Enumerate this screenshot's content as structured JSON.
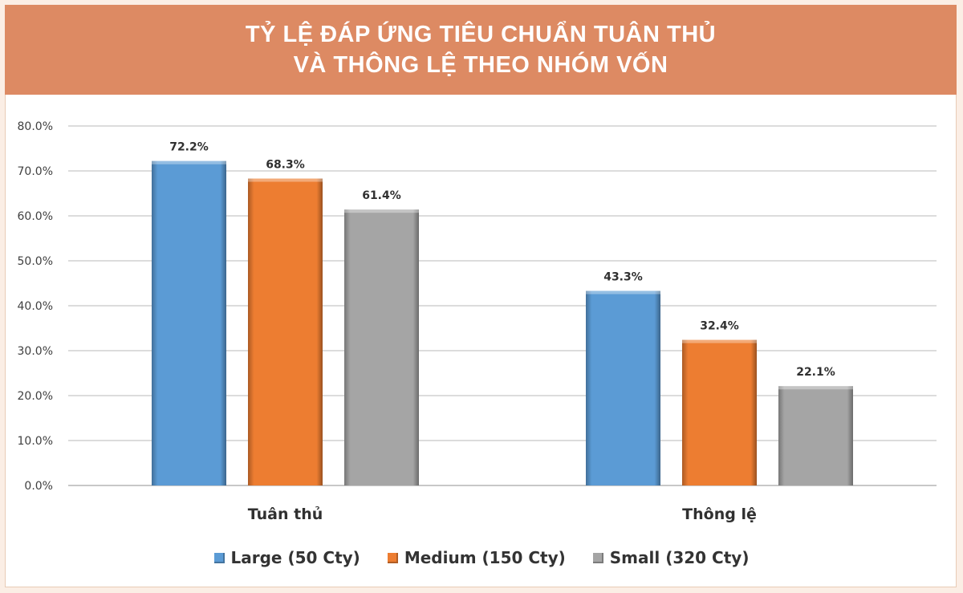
{
  "title": {
    "line1": "TỶ LỆ ĐÁP ỨNG TIÊU CHUẨN TUÂN THỦ",
    "line2": "VÀ THÔNG LỆ THEO NHÓM VỐN"
  },
  "chart_data": {
    "type": "bar",
    "categories": [
      "Tuân thủ",
      "Thông lệ"
    ],
    "series": [
      {
        "name": "Large (50 Cty)",
        "values": [
          72.2,
          43.3
        ],
        "labels": [
          "72.2%",
          "43.3%"
        ],
        "color": "#5b9bd5"
      },
      {
        "name": "Medium (150 Cty)",
        "values": [
          68.3,
          32.4
        ],
        "labels": [
          "68.3%",
          "32.4%"
        ],
        "color": "#ed7d31"
      },
      {
        "name": "Small (320 Cty)",
        "values": [
          61.4,
          22.1
        ],
        "labels": [
          "61.4%",
          "22.1%"
        ],
        "color": "#a5a5a5"
      }
    ],
    "ylim": [
      0,
      80
    ],
    "yticks": [
      "0.0%",
      "10.0%",
      "20.0%",
      "30.0%",
      "40.0%",
      "50.0%",
      "60.0%",
      "70.0%",
      "80.0%"
    ],
    "grid": true,
    "legend": "bottom"
  }
}
